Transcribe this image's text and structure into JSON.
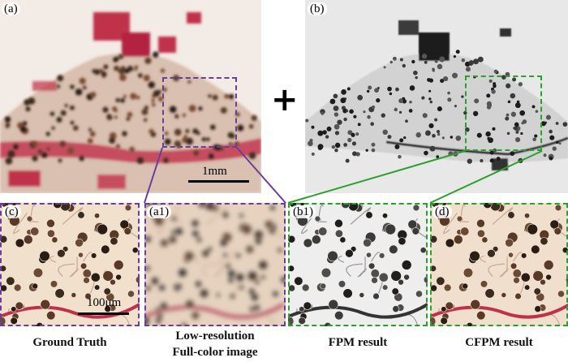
{
  "panels": {
    "a": {
      "label": "(a)"
    },
    "b": {
      "label": "(b)"
    },
    "c": {
      "label": "(c)"
    },
    "a1": {
      "label": "(a1)"
    },
    "b1": {
      "label": "(b1)"
    },
    "d": {
      "label": "(d)"
    }
  },
  "operator": "+",
  "scalebars": {
    "main": "1mm",
    "zoom": "100μm"
  },
  "captions": {
    "c": "Ground Truth",
    "a1_line1": "Low-resolution",
    "a1_line2": "Full-color image",
    "b1": "FPM result",
    "d": "CFPM result"
  },
  "colors": {
    "roi_low_res": "#6a3d9a",
    "roi_fpm": "#2ca02c",
    "stain_dark": "#3b2a1e",
    "stain_red": "#c0304a"
  }
}
